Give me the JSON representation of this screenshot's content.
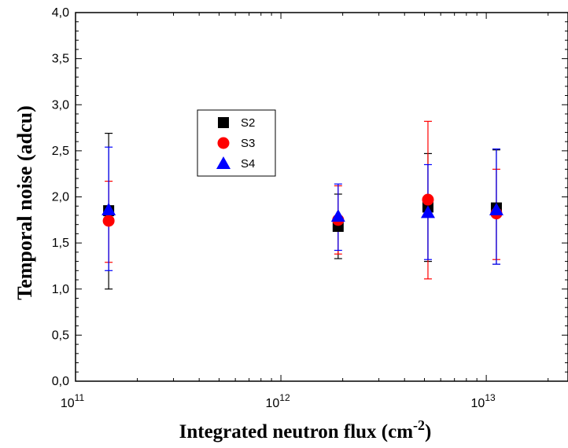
{
  "chart_data": {
    "type": "scatter",
    "xlabel": "Integrated neutron flux (cm",
    "xlabel_exponent": "-2",
    "xlabel_close": ")",
    "ylabel": "Temporal noise (adcu)",
    "x_scale": "log",
    "xlim": [
      100000000000.0,
      25000000000000.0
    ],
    "ylim": [
      0,
      4
    ],
    "x_ticks": [
      {
        "value": 100000000000.0,
        "base": "10",
        "exp": "11"
      },
      {
        "value": 1000000000000.0,
        "base": "10",
        "exp": "12"
      },
      {
        "value": 10000000000000.0,
        "base": "10",
        "exp": "13"
      }
    ],
    "y_ticks": [
      {
        "value": 0,
        "label": "0,0"
      },
      {
        "value": 0.5,
        "label": "0,5"
      },
      {
        "value": 1,
        "label": "1,0"
      },
      {
        "value": 1.5,
        "label": "1,5"
      },
      {
        "value": 2,
        "label": "2,0"
      },
      {
        "value": 2.5,
        "label": "2,5"
      },
      {
        "value": 3,
        "label": "3,0"
      },
      {
        "value": 3.5,
        "label": "3,5"
      },
      {
        "value": 4,
        "label": "4,0"
      }
    ],
    "grid": false,
    "legend_position": "upper-left",
    "series": [
      {
        "name": "S2",
        "marker": "square",
        "color": "#000000",
        "points": [
          {
            "x": 145000000000.0,
            "y": 1.85,
            "yerr_low": 1.0,
            "yerr_high": 2.69
          },
          {
            "x": 1900000000000.0,
            "y": 1.68,
            "yerr_low": 1.33,
            "yerr_high": 2.03
          },
          {
            "x": 5200000000000.0,
            "y": 1.89,
            "yerr_low": 1.3,
            "yerr_high": 2.47
          },
          {
            "x": 11200000000000.0,
            "y": 1.88,
            "yerr_low": 1.27,
            "yerr_high": 2.51
          }
        ]
      },
      {
        "name": "S3",
        "marker": "circle",
        "color": "#ff0000",
        "points": [
          {
            "x": 145000000000.0,
            "y": 1.74,
            "yerr_low": 1.29,
            "yerr_high": 2.17
          },
          {
            "x": 1900000000000.0,
            "y": 1.75,
            "yerr_low": 1.38,
            "yerr_high": 2.12
          },
          {
            "x": 5200000000000.0,
            "y": 1.97,
            "yerr_low": 1.11,
            "yerr_high": 2.82
          },
          {
            "x": 11200000000000.0,
            "y": 1.82,
            "yerr_low": 1.32,
            "yerr_high": 2.3
          }
        ]
      },
      {
        "name": "S4",
        "marker": "triangle",
        "color": "#0000ff",
        "points": [
          {
            "x": 145000000000.0,
            "y": 1.86,
            "yerr_low": 1.2,
            "yerr_high": 2.54
          },
          {
            "x": 1900000000000.0,
            "y": 1.79,
            "yerr_low": 1.42,
            "yerr_high": 2.14
          },
          {
            "x": 5200000000000.0,
            "y": 1.83,
            "yerr_low": 1.32,
            "yerr_high": 2.35
          },
          {
            "x": 11200000000000.0,
            "y": 1.86,
            "yerr_low": 1.27,
            "yerr_high": 2.52
          }
        ]
      }
    ]
  }
}
